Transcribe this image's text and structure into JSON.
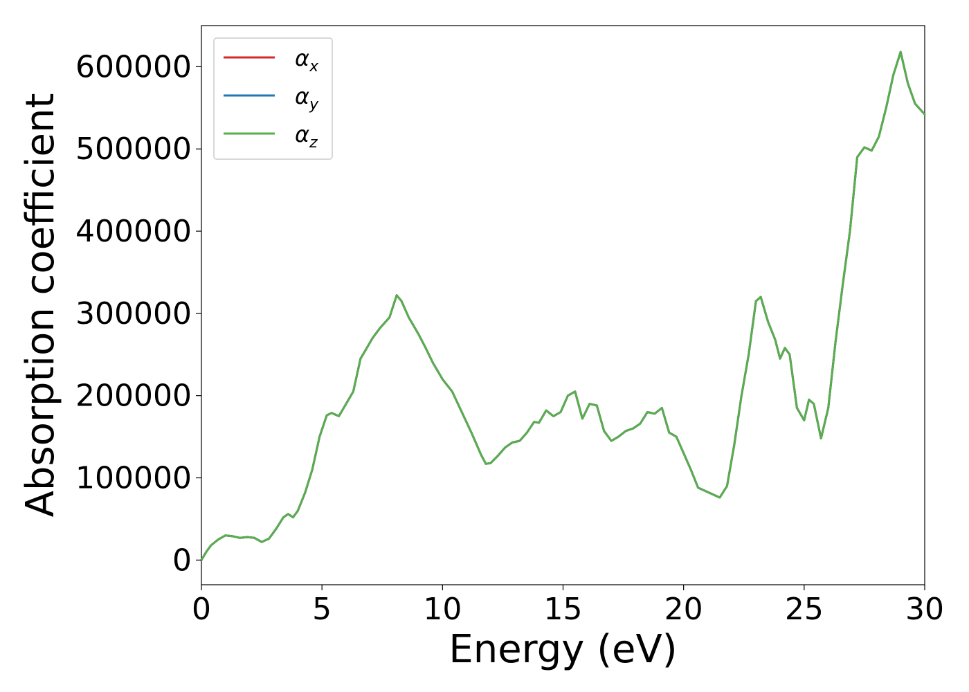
{
  "chart_data": {
    "type": "line",
    "title": "",
    "xlabel": "Energy (eV)",
    "ylabel": "Absorption coefficient",
    "xlim": [
      0,
      30
    ],
    "ylim": [
      -30000,
      650000
    ],
    "xticks": [
      0,
      5,
      10,
      15,
      20,
      25,
      30
    ],
    "yticks": [
      0,
      100000,
      200000,
      300000,
      400000,
      500000,
      600000
    ],
    "grid": false,
    "legend_position": "top-left",
    "series": [
      {
        "name": "α_x",
        "label_base": "α",
        "label_sub": "x",
        "color": "#d62728",
        "x": [
          0,
          0.2,
          0.4,
          0.7,
          1.0,
          1.3,
          1.6,
          1.9,
          2.2,
          2.5,
          2.8,
          3.1,
          3.4,
          3.6,
          3.8,
          4.0,
          4.3,
          4.6,
          4.9,
          5.2,
          5.4,
          5.7,
          6.0,
          6.3,
          6.6,
          6.8,
          7.1,
          7.4,
          7.8,
          8.1,
          8.3,
          8.6,
          9.0,
          9.3,
          9.6,
          10.0,
          10.4,
          10.8,
          11.2,
          11.6,
          11.8,
          12.0,
          12.3,
          12.6,
          12.9,
          13.2,
          13.5,
          13.8,
          14.0,
          14.3,
          14.6,
          14.9,
          15.2,
          15.5,
          15.8,
          16.1,
          16.4,
          16.7,
          17.0,
          17.3,
          17.6,
          17.9,
          18.2,
          18.5,
          18.8,
          19.1,
          19.4,
          19.7,
          20.0,
          20.3,
          20.6,
          20.9,
          21.2,
          21.5,
          21.8,
          22.1,
          22.4,
          22.7,
          23.0,
          23.2,
          23.5,
          23.8,
          24.0,
          24.2,
          24.4,
          24.7,
          25.0,
          25.2,
          25.4,
          25.7,
          26.0,
          26.3,
          26.6,
          26.9,
          27.2,
          27.5,
          27.8,
          28.1,
          28.4,
          28.7,
          29.0,
          29.3,
          29.6,
          30.0
        ],
        "y": [
          0,
          10000,
          18000,
          25000,
          30000,
          29000,
          27000,
          28000,
          27000,
          22000,
          26000,
          38000,
          52000,
          56000,
          52000,
          60000,
          82000,
          110000,
          150000,
          176000,
          179000,
          175000,
          190000,
          205000,
          245000,
          255000,
          270000,
          282000,
          295000,
          322000,
          315000,
          295000,
          275000,
          258000,
          240000,
          220000,
          205000,
          180000,
          155000,
          128000,
          117000,
          118000,
          127000,
          137000,
          143000,
          145000,
          155000,
          168000,
          167000,
          182000,
          175000,
          180000,
          200000,
          205000,
          172000,
          190000,
          188000,
          157000,
          145000,
          150000,
          157000,
          160000,
          166000,
          180000,
          178000,
          185000,
          155000,
          150000,
          130000,
          110000,
          88000,
          84000,
          80000,
          76000,
          90000,
          140000,
          200000,
          250000,
          315000,
          320000,
          290000,
          268000,
          245000,
          258000,
          250000,
          185000,
          170000,
          195000,
          190000,
          148000,
          185000,
          265000,
          335000,
          400000,
          490000,
          502000,
          498000,
          515000,
          550000,
          590000,
          618000,
          580000,
          555000,
          542000
        ]
      },
      {
        "name": "α_y",
        "label_base": "α",
        "label_sub": "y",
        "color": "#1f77b4",
        "x": [
          0,
          0.2,
          0.4,
          0.7,
          1.0,
          1.3,
          1.6,
          1.9,
          2.2,
          2.5,
          2.8,
          3.1,
          3.4,
          3.6,
          3.8,
          4.0,
          4.3,
          4.6,
          4.9,
          5.2,
          5.4,
          5.7,
          6.0,
          6.3,
          6.6,
          6.8,
          7.1,
          7.4,
          7.8,
          8.1,
          8.3,
          8.6,
          9.0,
          9.3,
          9.6,
          10.0,
          10.4,
          10.8,
          11.2,
          11.6,
          11.8,
          12.0,
          12.3,
          12.6,
          12.9,
          13.2,
          13.5,
          13.8,
          14.0,
          14.3,
          14.6,
          14.9,
          15.2,
          15.5,
          15.8,
          16.1,
          16.4,
          16.7,
          17.0,
          17.3,
          17.6,
          17.9,
          18.2,
          18.5,
          18.8,
          19.1,
          19.4,
          19.7,
          20.0,
          20.3,
          20.6,
          20.9,
          21.2,
          21.5,
          21.8,
          22.1,
          22.4,
          22.7,
          23.0,
          23.2,
          23.5,
          23.8,
          24.0,
          24.2,
          24.4,
          24.7,
          25.0,
          25.2,
          25.4,
          25.7,
          26.0,
          26.3,
          26.6,
          26.9,
          27.2,
          27.5,
          27.8,
          28.1,
          28.4,
          28.7,
          29.0,
          29.3,
          29.6,
          30.0
        ],
        "y": [
          0,
          10000,
          18000,
          25000,
          30000,
          29000,
          27000,
          28000,
          27000,
          22000,
          26000,
          38000,
          52000,
          56000,
          52000,
          60000,
          82000,
          110000,
          150000,
          176000,
          179000,
          175000,
          190000,
          205000,
          245000,
          255000,
          270000,
          282000,
          295000,
          322000,
          315000,
          295000,
          275000,
          258000,
          240000,
          220000,
          205000,
          180000,
          155000,
          128000,
          117000,
          118000,
          127000,
          137000,
          143000,
          145000,
          155000,
          168000,
          167000,
          182000,
          175000,
          180000,
          200000,
          205000,
          172000,
          190000,
          188000,
          157000,
          145000,
          150000,
          157000,
          160000,
          166000,
          180000,
          178000,
          185000,
          155000,
          150000,
          130000,
          110000,
          88000,
          84000,
          80000,
          76000,
          90000,
          140000,
          200000,
          250000,
          315000,
          320000,
          290000,
          268000,
          245000,
          258000,
          250000,
          185000,
          170000,
          195000,
          190000,
          148000,
          185000,
          265000,
          335000,
          400000,
          490000,
          502000,
          498000,
          515000,
          550000,
          590000,
          618000,
          580000,
          555000,
          542000
        ]
      },
      {
        "name": "α_z",
        "label_base": "α",
        "label_sub": "z",
        "color": "#5aad4e",
        "x": [
          0,
          0.2,
          0.4,
          0.7,
          1.0,
          1.3,
          1.6,
          1.9,
          2.2,
          2.5,
          2.8,
          3.1,
          3.4,
          3.6,
          3.8,
          4.0,
          4.3,
          4.6,
          4.9,
          5.2,
          5.4,
          5.7,
          6.0,
          6.3,
          6.6,
          6.8,
          7.1,
          7.4,
          7.8,
          8.1,
          8.3,
          8.6,
          9.0,
          9.3,
          9.6,
          10.0,
          10.4,
          10.8,
          11.2,
          11.6,
          11.8,
          12.0,
          12.3,
          12.6,
          12.9,
          13.2,
          13.5,
          13.8,
          14.0,
          14.3,
          14.6,
          14.9,
          15.2,
          15.5,
          15.8,
          16.1,
          16.4,
          16.7,
          17.0,
          17.3,
          17.6,
          17.9,
          18.2,
          18.5,
          18.8,
          19.1,
          19.4,
          19.7,
          20.0,
          20.3,
          20.6,
          20.9,
          21.2,
          21.5,
          21.8,
          22.1,
          22.4,
          22.7,
          23.0,
          23.2,
          23.5,
          23.8,
          24.0,
          24.2,
          24.4,
          24.7,
          25.0,
          25.2,
          25.4,
          25.7,
          26.0,
          26.3,
          26.6,
          26.9,
          27.2,
          27.5,
          27.8,
          28.1,
          28.4,
          28.7,
          29.0,
          29.3,
          29.6,
          30.0
        ],
        "y": [
          0,
          10000,
          18000,
          25000,
          30000,
          29000,
          27000,
          28000,
          27000,
          22000,
          26000,
          38000,
          52000,
          56000,
          52000,
          60000,
          82000,
          110000,
          150000,
          176000,
          179000,
          175000,
          190000,
          205000,
          245000,
          255000,
          270000,
          282000,
          295000,
          322000,
          315000,
          295000,
          275000,
          258000,
          240000,
          220000,
          205000,
          180000,
          155000,
          128000,
          117000,
          118000,
          127000,
          137000,
          143000,
          145000,
          155000,
          168000,
          167000,
          182000,
          175000,
          180000,
          200000,
          205000,
          172000,
          190000,
          188000,
          157000,
          145000,
          150000,
          157000,
          160000,
          166000,
          180000,
          178000,
          185000,
          155000,
          150000,
          130000,
          110000,
          88000,
          84000,
          80000,
          76000,
          90000,
          140000,
          200000,
          250000,
          315000,
          320000,
          290000,
          268000,
          245000,
          258000,
          250000,
          185000,
          170000,
          195000,
          190000,
          148000,
          185000,
          265000,
          335000,
          400000,
          490000,
          502000,
          498000,
          515000,
          550000,
          590000,
          618000,
          580000,
          555000,
          542000
        ]
      }
    ]
  }
}
